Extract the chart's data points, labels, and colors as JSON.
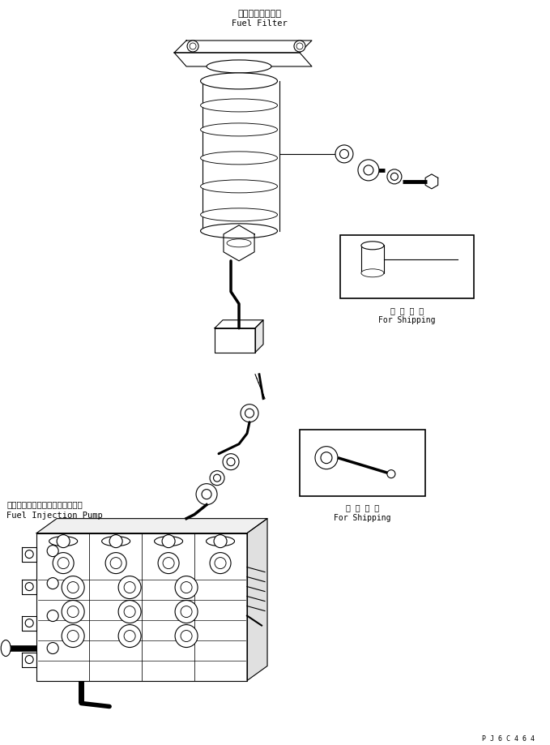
{
  "bg_color": "#ffffff",
  "line_color": "#000000",
  "fig_width": 6.79,
  "fig_height": 9.19,
  "dpi": 100,
  "title_jp1": "フェエルフィルタ",
  "title_en1": "Fuel Filter",
  "title_jp2": "フェエルインジェクションポンプ",
  "title_en2": "Fuel Injection Pump",
  "shipping_jp": "運 搜 部 品",
  "shipping_en": "For Shipping",
  "part_code": "P J 6 C 4 6 4",
  "font_size_label": 7.5,
  "font_size_part": 6.5
}
